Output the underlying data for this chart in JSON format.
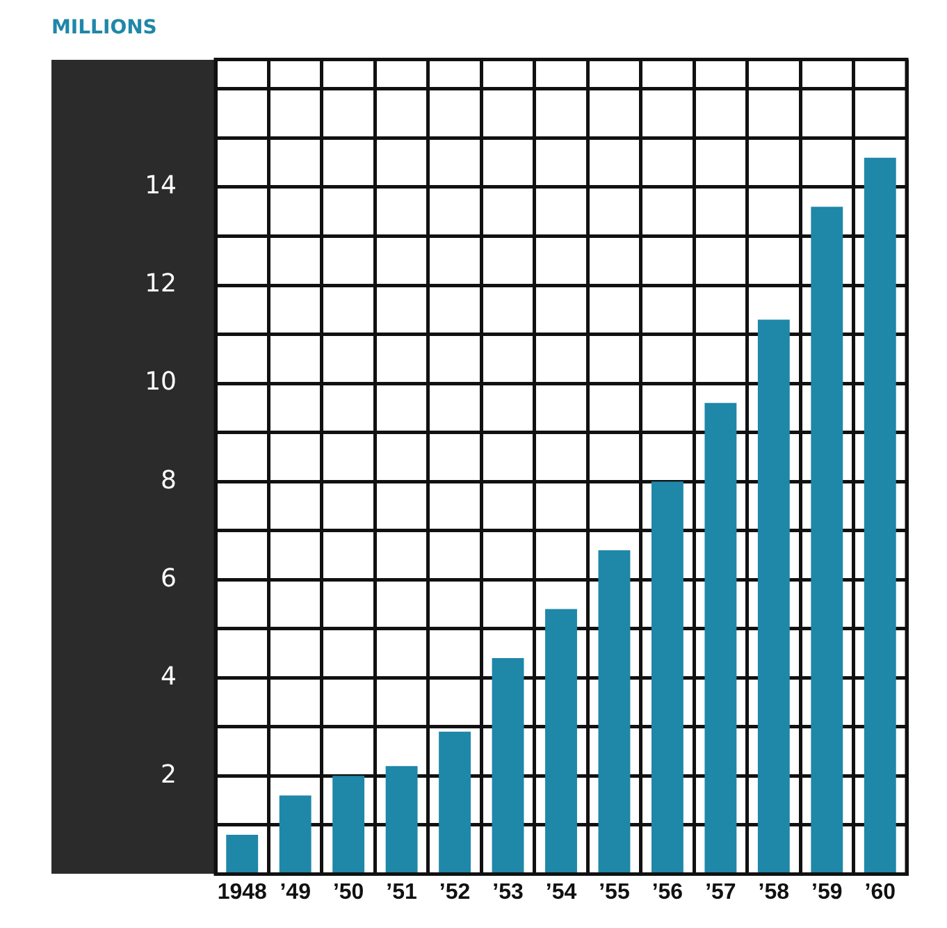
{
  "chart_data": {
    "type": "bar",
    "ylabel": "MILLIONS",
    "categories": [
      "1948",
      "’49",
      "’50",
      "’51",
      "’52",
      "’53",
      "’54",
      "’55",
      "’56",
      "’57",
      "’58",
      "’59",
      "’60"
    ],
    "values": [
      0.8,
      1.6,
      2.0,
      2.2,
      2.9,
      4.4,
      5.4,
      6.6,
      8.0,
      9.6,
      11.3,
      13.6,
      14.6
    ],
    "color": "#1f87a8",
    "ylim": [
      0,
      16.6
    ],
    "yticks": [
      {
        "value": 1,
        "label": null
      },
      2,
      {
        "value": 3,
        "label": null
      },
      4,
      {
        "value": 5,
        "label": null
      },
      6,
      {
        "value": 7,
        "label": null
      },
      8,
      {
        "value": 9,
        "label": null
      },
      10,
      {
        "value": 11,
        "label": null
      },
      12,
      {
        "value": 13,
        "label": null
      },
      14,
      {
        "value": 15,
        "label": null
      },
      {
        "value": 16,
        "label": null
      }
    ],
    "grid": true
  }
}
